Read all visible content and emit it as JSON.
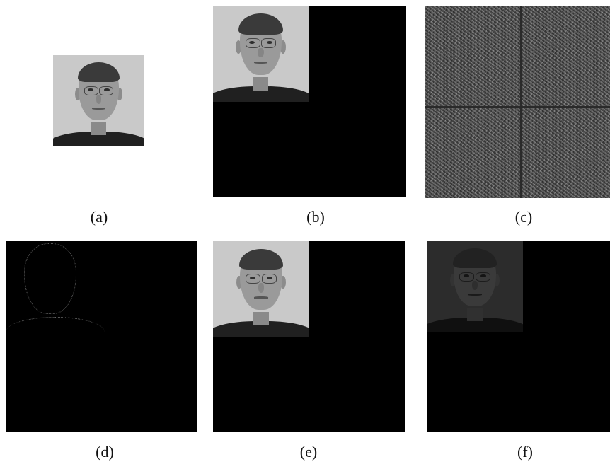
{
  "panels": [
    {
      "id": "a",
      "caption": "(a)"
    },
    {
      "id": "b",
      "caption": "(b)"
    },
    {
      "id": "c",
      "caption": "(c)"
    },
    {
      "id": "d",
      "caption": "(d)"
    },
    {
      "id": "e",
      "caption": "(e)"
    },
    {
      "id": "f",
      "caption": "(f)"
    }
  ]
}
